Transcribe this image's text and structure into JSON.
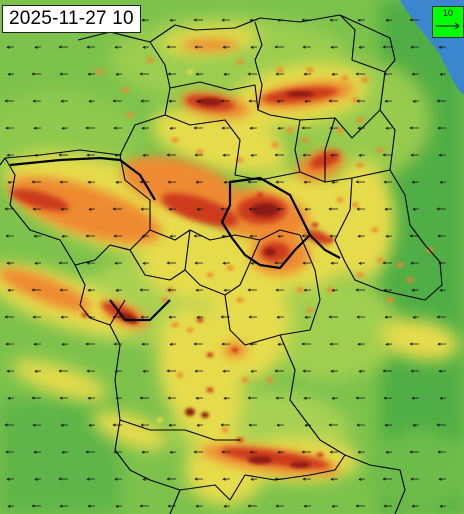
{
  "timestamp": "2025-11-27 10",
  "scale": {
    "value": "10",
    "icon": "wind-arrow-icon"
  },
  "colors": {
    "background_green": "#6fbf4a",
    "light_green": "#9acd4f",
    "yellow": "#e8d94a",
    "orange": "#ef8a2e",
    "red": "#c8381c",
    "dark_red": "#8f1d12",
    "sea": "#2f7fd0",
    "border": "#000000",
    "arrow": "#1a1a1a"
  }
}
